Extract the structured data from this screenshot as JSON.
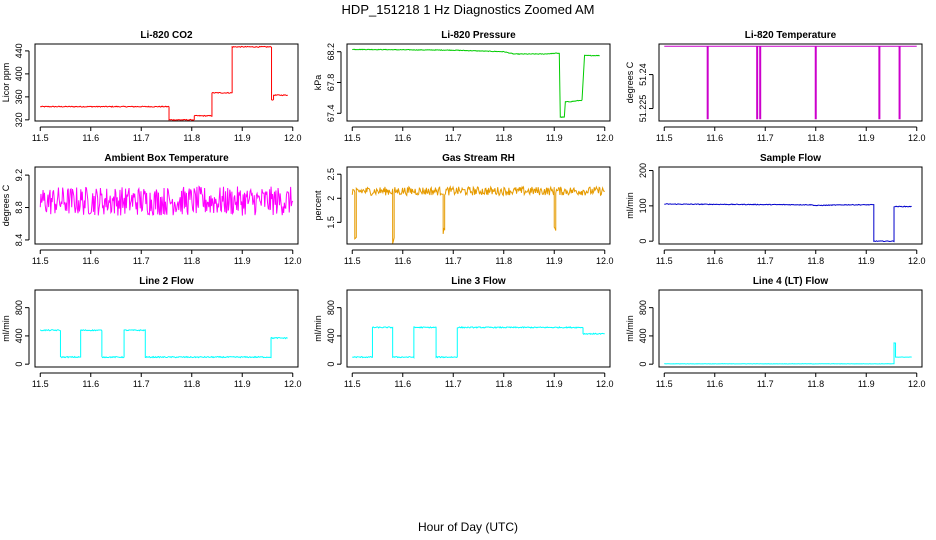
{
  "figure": {
    "title": "HDP_151218  1 Hz Diagnostics Zoomed AM",
    "xlabel": "Hour of Day (UTC)"
  },
  "chart_data": [
    {
      "type": "line",
      "title": "Li-820 CO2",
      "ylabel": "Licor ppm",
      "color": "#ff0000",
      "xlim": [
        11.5,
        12.0
      ],
      "ylim": [
        318,
        452
      ],
      "xticks": [
        11.5,
        11.6,
        11.7,
        11.8,
        11.9,
        12.0
      ],
      "yticks": [
        320,
        360,
        400,
        440
      ],
      "noise": 0.8,
      "x": [
        11.5,
        11.755,
        11.755,
        11.805,
        11.805,
        11.84,
        11.84,
        11.88,
        11.88,
        11.958,
        11.958,
        11.962,
        11.962,
        11.99
      ],
      "y": [
        343,
        343,
        320,
        320,
        327,
        327,
        367,
        367,
        447,
        447,
        355,
        355,
        363,
        363
      ]
    },
    {
      "type": "line",
      "title": "Li-820 Pressure",
      "ylabel": "kPa",
      "color": "#00cc00",
      "xlim": [
        11.5,
        12.0
      ],
      "ylim": [
        67.3,
        68.3
      ],
      "xticks": [
        11.5,
        11.6,
        11.7,
        11.8,
        11.9,
        12.0
      ],
      "yticks": [
        67.4,
        67.8,
        68.2
      ],
      "noise": 0.004,
      "x": [
        11.5,
        11.7,
        11.8,
        11.82,
        11.88,
        11.905,
        11.91,
        11.912,
        11.92,
        11.922,
        11.93,
        11.955,
        11.96,
        11.97,
        11.99
      ],
      "y": [
        68.23,
        68.22,
        68.2,
        68.17,
        68.17,
        68.18,
        68.18,
        67.35,
        67.35,
        67.55,
        67.55,
        67.57,
        68.15,
        68.15,
        68.15
      ]
    },
    {
      "type": "line",
      "title": "Li-820 Temperature",
      "ylabel": "degrees C",
      "color": "#cc00cc",
      "xlim": [
        11.5,
        12.0
      ],
      "ylim": [
        51.2195,
        51.2535
      ],
      "xticks": [
        11.5,
        11.6,
        11.7,
        11.8,
        11.9,
        12.0
      ],
      "yticks": [
        51.225,
        51.24
      ],
      "noise": 0.0,
      "x": [
        11.5,
        11.585,
        11.585,
        11.587,
        11.587,
        11.683,
        11.683,
        11.685,
        11.685,
        11.689,
        11.689,
        11.691,
        11.691,
        11.799,
        11.799,
        11.801,
        11.801,
        11.925,
        11.925,
        11.927,
        11.927,
        11.965,
        11.965,
        11.967,
        11.967,
        12.0
      ],
      "y": [
        51.2525,
        51.2525,
        51.2205,
        51.2205,
        51.2525,
        51.2525,
        51.2205,
        51.2205,
        51.2525,
        51.2525,
        51.2205,
        51.2205,
        51.2525,
        51.2525,
        51.2205,
        51.2205,
        51.2525,
        51.2525,
        51.2205,
        51.2205,
        51.2525,
        51.2525,
        51.2205,
        51.2205,
        51.2525,
        51.2525
      ]
    },
    {
      "type": "line",
      "title": "Ambient Box Temperature",
      "ylabel": "degrees C",
      "color": "#ff00ff",
      "xlim": [
        11.5,
        12.0
      ],
      "ylim": [
        8.35,
        9.3
      ],
      "xticks": [
        11.5,
        11.6,
        11.7,
        11.8,
        11.9,
        12.0
      ],
      "yticks": [
        8.4,
        8.8,
        9.2
      ],
      "noise": 0.18,
      "x": [
        11.5,
        12.0
      ],
      "y": [
        8.88,
        8.88
      ]
    },
    {
      "type": "line",
      "title": "Gas Stream RH",
      "ylabel": "percent",
      "color": "#e69b00",
      "xlim": [
        11.5,
        12.0
      ],
      "ylim": [
        1.05,
        2.65
      ],
      "xticks": [
        11.5,
        11.6,
        11.7,
        11.8,
        11.9,
        12.0
      ],
      "yticks": [
        1.5,
        2.0,
        2.5
      ],
      "noise": 0.09,
      "x": [
        11.5,
        11.505,
        11.505,
        11.508,
        11.508,
        11.58,
        11.58,
        11.583,
        11.583,
        11.68,
        11.68,
        11.683,
        11.683,
        11.9,
        11.9,
        11.903,
        11.903,
        12.0
      ],
      "y": [
        2.15,
        2.15,
        1.1,
        1.1,
        2.15,
        2.15,
        1.1,
        1.1,
        2.15,
        2.15,
        1.3,
        1.3,
        2.15,
        2.15,
        1.4,
        1.4,
        2.15,
        2.15
      ]
    },
    {
      "type": "line",
      "title": "Sample Flow",
      "ylabel": "ml/min",
      "color": "#0000cc",
      "xlim": [
        11.5,
        12.0
      ],
      "ylim": [
        -8,
        210
      ],
      "xticks": [
        11.5,
        11.6,
        11.7,
        11.8,
        11.9,
        12.0
      ],
      "yticks": [
        0,
        100,
        200
      ],
      "noise": 1.0,
      "x": [
        11.5,
        11.79,
        11.8,
        11.86,
        11.865,
        11.915,
        11.915,
        11.955,
        11.955,
        11.99
      ],
      "y": [
        105,
        103,
        101,
        103,
        103,
        103,
        0,
        0,
        98,
        98
      ]
    },
    {
      "type": "line",
      "title": "Line 2 Flow",
      "ylabel": "ml/min",
      "color": "#00ffff",
      "xlim": [
        11.5,
        12.0
      ],
      "ylim": [
        -40,
        1050
      ],
      "xticks": [
        11.5,
        11.6,
        11.7,
        11.8,
        11.9,
        12.0
      ],
      "yticks": [
        0,
        400,
        800
      ],
      "noise": 8,
      "x": [
        11.5,
        11.54,
        11.54,
        11.58,
        11.58,
        11.622,
        11.622,
        11.666,
        11.666,
        11.708,
        11.708,
        11.957,
        11.957,
        11.99
      ],
      "y": [
        480,
        480,
        100,
        100,
        480,
        480,
        100,
        100,
        480,
        480,
        100,
        100,
        370,
        370
      ]
    },
    {
      "type": "line",
      "title": "Line 3 Flow",
      "ylabel": "ml/min",
      "color": "#00ffff",
      "xlim": [
        11.5,
        12.0
      ],
      "ylim": [
        -40,
        1050
      ],
      "xticks": [
        11.5,
        11.6,
        11.7,
        11.8,
        11.9,
        12.0
      ],
      "yticks": [
        0,
        400,
        800
      ],
      "noise": 8,
      "x": [
        11.5,
        11.54,
        11.54,
        11.58,
        11.58,
        11.622,
        11.622,
        11.666,
        11.666,
        11.708,
        11.708,
        11.957,
        11.957,
        12.0
      ],
      "y": [
        100,
        100,
        520,
        520,
        100,
        100,
        520,
        520,
        100,
        100,
        520,
        520,
        430,
        430
      ]
    },
    {
      "type": "line",
      "title": "Line 4 (LT) Flow",
      "ylabel": "ml/min",
      "color": "#00ffff",
      "xlim": [
        11.5,
        12.0
      ],
      "ylim": [
        -40,
        1050
      ],
      "xticks": [
        11.5,
        11.6,
        11.7,
        11.8,
        11.9,
        12.0
      ],
      "yticks": [
        0,
        400,
        800
      ],
      "noise": 2,
      "x": [
        11.5,
        11.955,
        11.955,
        11.958,
        11.958,
        11.99
      ],
      "y": [
        5,
        5,
        300,
        300,
        100,
        100
      ]
    }
  ]
}
